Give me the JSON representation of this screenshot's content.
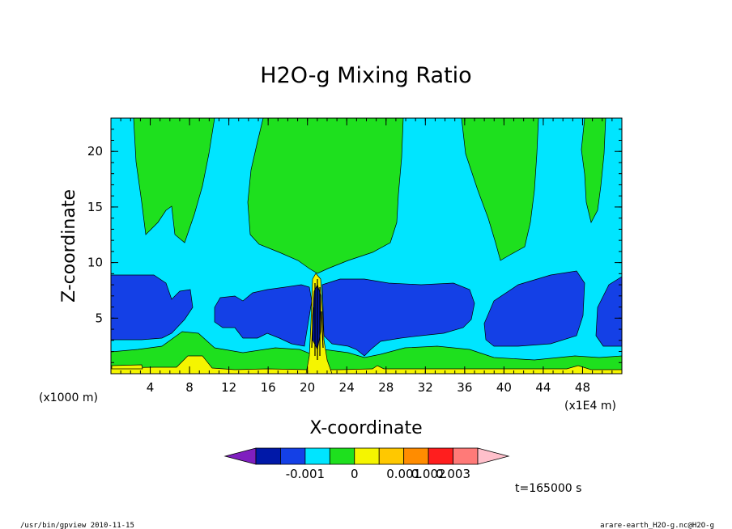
{
  "chart_data": {
    "type": "heatmap",
    "title": "H2O-g Mixing Ratio",
    "xlabel": "X-coordinate",
    "ylabel": "Z-coordinate",
    "x_unit_left": "(x1000 m)",
    "x_unit_right": "(x1E4 m)",
    "xlim": [
      0,
      52
    ],
    "ylim": [
      0,
      23
    ],
    "x_ticks": [
      4,
      8,
      12,
      16,
      20,
      24,
      28,
      32,
      36,
      40,
      44,
      48
    ],
    "y_ticks": [
      5,
      10,
      15,
      20
    ],
    "colorbar": {
      "colors": [
        "#7f1fbf",
        "#0018a8",
        "#1440e6",
        "#00e5ff",
        "#1ee01e",
        "#f5f500",
        "#ffc800",
        "#ff8c00",
        "#ff1e1e",
        "#ff7a78",
        "#ffc0cb"
      ],
      "tick_labels": [
        "-0.001",
        "0",
        "0.001",
        "0.002",
        "0.003"
      ]
    },
    "levels_shown": {
      "background": "#00e5ff",
      "moist": "#1ee01e",
      "dry": "#1440e6",
      "near_surface": "#f5f500"
    },
    "time_label": "t=165000 s"
  },
  "footer": {
    "left": "/usr/bin/gpview   2010-11-15",
    "right": "arare-earth_H2O-g.nc@H2O-g"
  }
}
